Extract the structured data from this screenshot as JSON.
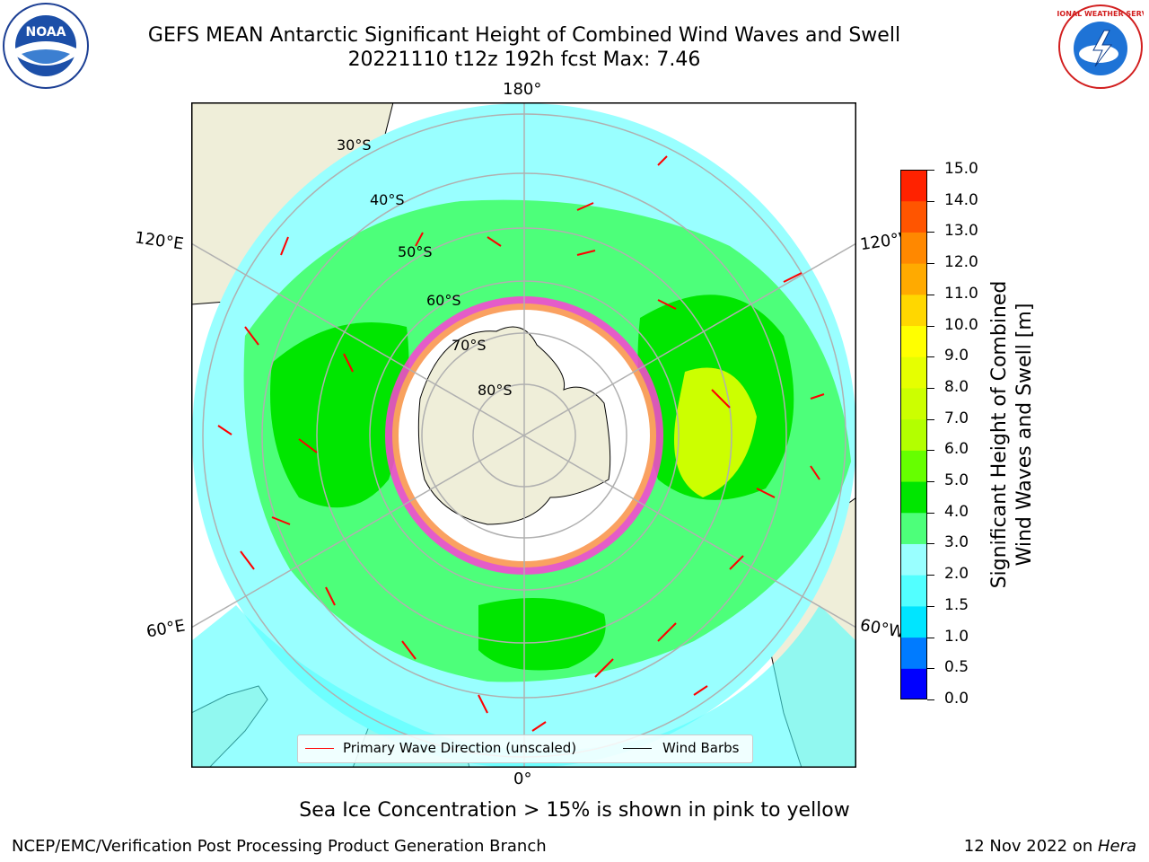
{
  "header": {
    "title_line1": "GEFS MEAN Antarctic Significant Height of Combined Wind Waves and Swell",
    "title_line2": "20221110 t12z 192h fcst   Max: 7.46",
    "noaa_logo_text": "NOAA",
    "nws_logo_text": "NATIONAL WEATHER SERVICE"
  },
  "map": {
    "projection": "south-polar-stereographic",
    "lon_labels": {
      "top": "180°",
      "bottom": "0°",
      "left_upper": "120°E",
      "left_lower": "60°E",
      "right_upper": "120°W",
      "right_lower": "60°W"
    },
    "lat_labels": [
      "30°S",
      "40°S",
      "50°S",
      "60°S",
      "70°S",
      "80°S"
    ],
    "colors": {
      "ocean_low": "#99ffff",
      "ocean_mid": "#4dff7a",
      "ocean_high": "#00e600",
      "ocean_peak": "#ccff00",
      "land": "#efeed9",
      "sea_ice": "#ff3fd6",
      "wave_arrow": "#ff0000",
      "wind_barb": "#000000"
    }
  },
  "colorbar": {
    "label_line1": "Significant Height of Combined",
    "label_line2": "Wind Waves and Swell [m]",
    "ticks": [
      "0.0",
      "0.5",
      "1.0",
      "1.5",
      "2.0",
      "3.0",
      "4.0",
      "5.0",
      "6.0",
      "7.0",
      "8.0",
      "9.0",
      "10.0",
      "11.0",
      "12.0",
      "13.0",
      "14.0",
      "15.0"
    ],
    "colors": [
      "#0000ff",
      "#007bff",
      "#00e5ff",
      "#52ffff",
      "#99ffff",
      "#4dff7a",
      "#00e600",
      "#66ff00",
      "#b3ff00",
      "#ccff00",
      "#e6ff00",
      "#ffff00",
      "#ffd700",
      "#ffaa00",
      "#ff8800",
      "#ff5500",
      "#ff2200"
    ]
  },
  "legend": {
    "wave_label": "Primary Wave Direction (unscaled)",
    "barb_label": "Wind Barbs"
  },
  "note": "Sea Ice Concentration > 15% is shown in pink to yellow",
  "footer": {
    "left": "NCEP/EMC/Verification Post Processing Product Generation Branch",
    "date": "12 Nov 2022 on ",
    "host": "Hera"
  }
}
